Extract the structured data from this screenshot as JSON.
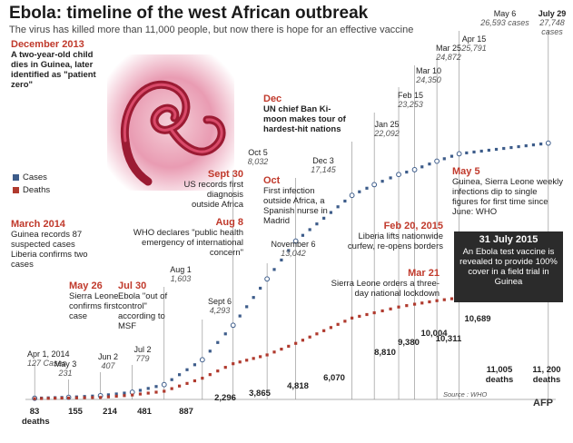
{
  "header": {
    "title": "Ebola: timeline of the west African outbreak",
    "subtitle": "The virus has killed more than 11,000 people, but now there is hope for an effective vaccine"
  },
  "legend": {
    "cases": "Cases",
    "deaths": "Deaths"
  },
  "colors": {
    "cases": "#3d5c8a",
    "deaths": "#b03a2e",
    "accent": "#c0392b",
    "box": "#2b2b2b"
  },
  "annotations": {
    "dec2013": {
      "date": "December 2013",
      "text": "A two-year-old child dies in Guinea, later identified as \"patient zero\""
    },
    "mar2014": {
      "date": "March 2014",
      "line1": "Guinea records 87 suspected cases",
      "line2": "Liberia confirms two cases"
    },
    "may26": {
      "date": "May 26",
      "text": "Sierra Leone confirms first case"
    },
    "jul30": {
      "date": "Jul 30",
      "text": "Ebola \"out of control\" according to MSF"
    },
    "aug8": {
      "date": "Aug 8",
      "text": "WHO declares \"public health emergency of international concern\""
    },
    "sep30": {
      "date": "Sept 30",
      "text": "US records first diagnosis outside Africa"
    },
    "oct": {
      "date": "Oct",
      "text": "First infection outside Africa, a Spanish nurse in Madrid"
    },
    "dec": {
      "date": "Dec",
      "text": "UN chief Ban Ki-moon makes tour of hardest-hit nations"
    },
    "feb20": {
      "date": "Feb 20, 2015",
      "text": "Liberia lifts nationwide curfew, re-opens borders"
    },
    "mar21": {
      "date": "Mar 21",
      "text": "Sierra Leone orders a three-day national lockdown"
    },
    "may5": {
      "date": "May 5",
      "text": "Guinea, Sierra Leone weekly infections dip to single figures for first time since June: WHO"
    },
    "vaccine": {
      "date": "31 July 2015",
      "text": "An Ebola test vaccine is revealed to provide 100% cover in a field trial in Guinea"
    }
  },
  "case_labels": [
    {
      "date": "Apr 1, 2014",
      "value": "127 Cases"
    },
    {
      "date": "May 3",
      "value": "231"
    },
    {
      "date": "Jun 2",
      "value": "407"
    },
    {
      "date": "Jul 2",
      "value": "779"
    },
    {
      "date": "Aug 1",
      "value": "1,603"
    },
    {
      "date": "Sept 6",
      "value": "4,293"
    },
    {
      "date": "Oct 5",
      "value": "8,032"
    },
    {
      "date": "November 6",
      "value": "13,042"
    },
    {
      "date": "Dec 3",
      "value": "17,145"
    },
    {
      "date": "Jan 25",
      "value": "22,092"
    },
    {
      "date": "Feb 15",
      "value": "23,253"
    },
    {
      "date": "Mar 10",
      "value": "24,350"
    },
    {
      "date": "Mar 25",
      "value": "24,872"
    },
    {
      "date": "Apr 15",
      "value": "25,791"
    },
    {
      "date": "May 6",
      "value": "26,593 cases"
    },
    {
      "date": "July 29",
      "value": "27,748 cases"
    }
  ],
  "death_labels": [
    "83",
    "deaths",
    "155",
    "214",
    "481",
    "887",
    "2,296",
    "3,865",
    "4,818",
    "6,070",
    "8,810",
    "9,380",
    "10,004",
    "10,311",
    "10,689",
    "11,005",
    "deaths",
    "11, 200",
    "deaths"
  ],
  "footer": {
    "source": "Source : WHO",
    "agency": "AFP"
  },
  "chart_data": {
    "type": "scatter",
    "title": "Ebola: timeline of the west African outbreak",
    "x_unit": "date",
    "series": [
      {
        "name": "Cases",
        "points": [
          {
            "x": "2014-04-01",
            "y": 127
          },
          {
            "x": "2014-05-03",
            "y": 231
          },
          {
            "x": "2014-06-02",
            "y": 407
          },
          {
            "x": "2014-07-02",
            "y": 779
          },
          {
            "x": "2014-08-01",
            "y": 1603
          },
          {
            "x": "2014-09-06",
            "y": 4293
          },
          {
            "x": "2014-10-05",
            "y": 8032
          },
          {
            "x": "2014-11-06",
            "y": 13042
          },
          {
            "x": "2014-12-03",
            "y": 17145
          },
          {
            "x": "2015-01-25",
            "y": 22092
          },
          {
            "x": "2015-02-15",
            "y": 23253
          },
          {
            "x": "2015-03-10",
            "y": 24350
          },
          {
            "x": "2015-03-25",
            "y": 24872
          },
          {
            "x": "2015-04-15",
            "y": 25791
          },
          {
            "x": "2015-05-06",
            "y": 26593
          },
          {
            "x": "2015-07-29",
            "y": 27748
          }
        ]
      },
      {
        "name": "Deaths",
        "points": [
          {
            "x": "2014-04-01",
            "y": 83
          },
          {
            "x": "2014-05-03",
            "y": 155
          },
          {
            "x": "2014-06-02",
            "y": 214
          },
          {
            "x": "2014-07-02",
            "y": 481
          },
          {
            "x": "2014-08-01",
            "y": 887
          },
          {
            "x": "2014-09-06",
            "y": 2296
          },
          {
            "x": "2014-10-05",
            "y": 3865
          },
          {
            "x": "2014-11-06",
            "y": 4818
          },
          {
            "x": "2014-12-03",
            "y": 6070
          },
          {
            "x": "2015-01-25",
            "y": 8810
          },
          {
            "x": "2015-02-15",
            "y": 9380
          },
          {
            "x": "2015-03-10",
            "y": 10004
          },
          {
            "x": "2015-03-25",
            "y": 10311
          },
          {
            "x": "2015-04-15",
            "y": 10689
          },
          {
            "x": "2015-05-06",
            "y": 11005
          },
          {
            "x": "2015-07-29",
            "y": 11200
          }
        ]
      }
    ],
    "grid": false,
    "legend": "left"
  }
}
